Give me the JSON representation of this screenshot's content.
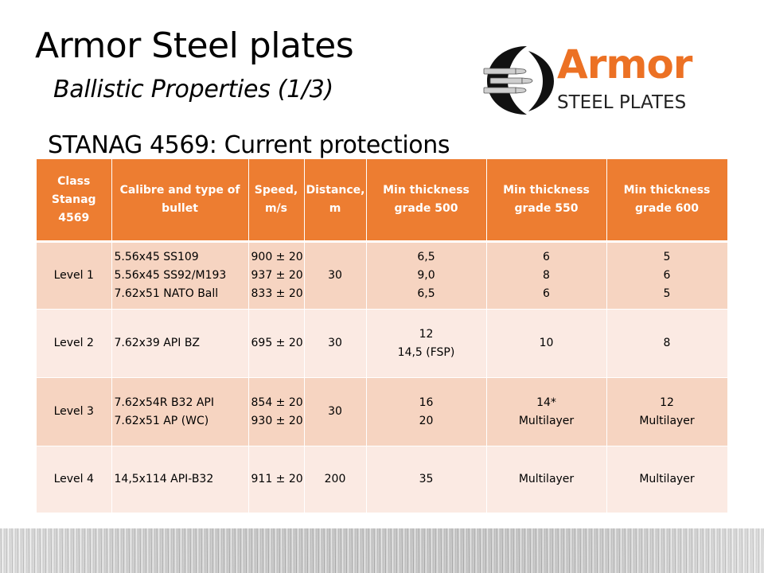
{
  "title": "Armor Steel plates",
  "subtitle": "Ballistic Properties (1/3)",
  "section_heading": "STANAG 4569: Current protections",
  "logo": {
    "word": "Armor",
    "subtitle": "STEEL PLATES",
    "icon": "bullets-emblem-icon",
    "accent": "#ec7124"
  },
  "colors": {
    "header_bg": "#ed7d31",
    "row_dark": "#f6d4c1",
    "row_light": "#fbeae3"
  },
  "table": {
    "headers": {
      "class": [
        "Class",
        "Stanag",
        "4569"
      ],
      "calibre": [
        "Calibre and  type of",
        "bullet"
      ],
      "speed": [
        "Speed,",
        "m/s"
      ],
      "distance": [
        "Distance,",
        "m"
      ],
      "g500": [
        "Min thickness",
        "grade 500"
      ],
      "g550": [
        "Min thickness",
        "grade 550"
      ],
      "g600": [
        "Min thickness",
        "grade 600"
      ]
    },
    "rows": [
      {
        "level": "Level 1",
        "calibre": [
          "5.56x45 SS109",
          "5.56x45 SS92/M193",
          "7.62x51 NATO Ball"
        ],
        "speed": [
          "900 ± 20",
          "937 ± 20",
          "833 ± 20"
        ],
        "distance": "30",
        "g500": [
          "6,5",
          "9,0",
          "6,5"
        ],
        "g550": [
          "6",
          "8",
          "6"
        ],
        "g600": [
          "5",
          "6",
          "5"
        ]
      },
      {
        "level": "Level 2",
        "calibre": [
          "7.62x39 API BZ"
        ],
        "speed": [
          "695 ± 20"
        ],
        "distance": "30",
        "g500": [
          "12",
          "14,5 (FSP)"
        ],
        "g550": [
          "10"
        ],
        "g600": [
          "8"
        ]
      },
      {
        "level": "Level 3",
        "calibre": [
          "7.62x54R B32 API",
          "7.62x51 AP (WC)"
        ],
        "speed": [
          "854 ± 20",
          "930 ± 20"
        ],
        "distance": "30",
        "g500": [
          "16",
          "20"
        ],
        "g550": [
          "14*",
          "Multilayer"
        ],
        "g600": [
          "12",
          "Multilayer"
        ]
      },
      {
        "level": "Level 4",
        "calibre": [
          "14,5x114 API-B32"
        ],
        "speed": [
          "911 ± 20"
        ],
        "distance": "200",
        "g500": [
          "35"
        ],
        "g550": [
          "Multilayer"
        ],
        "g600": [
          "Multilayer"
        ]
      }
    ]
  }
}
